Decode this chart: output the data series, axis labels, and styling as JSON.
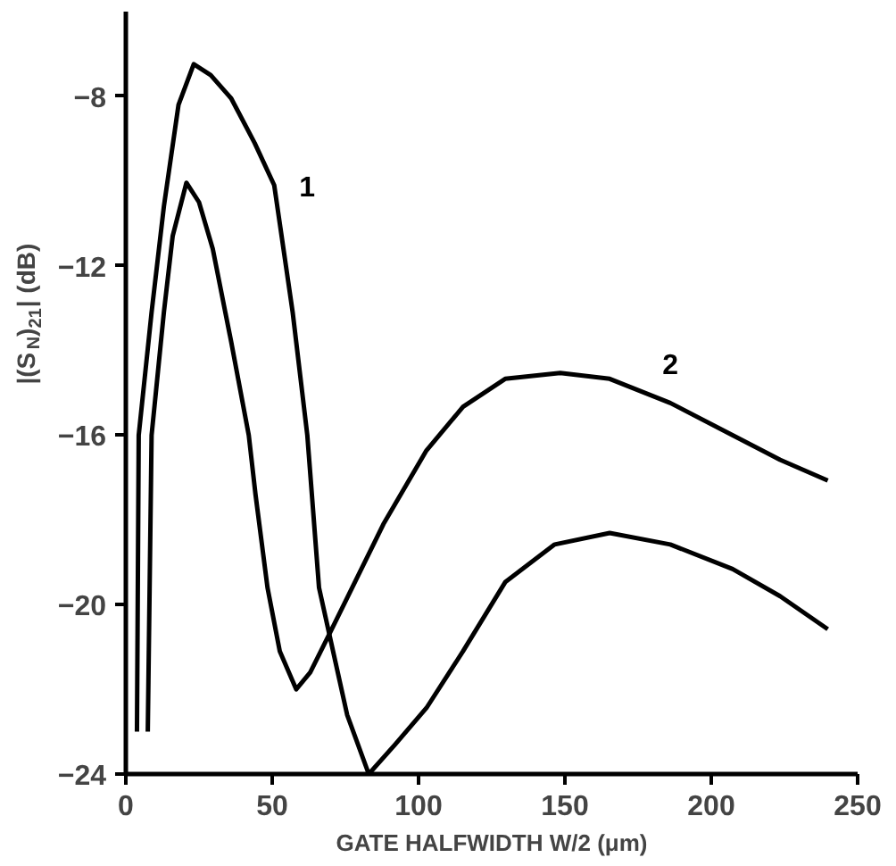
{
  "chart_data": {
    "type": "line",
    "xlabel": "GATE HALFWIDTH W/2 (μm)",
    "ylabel": "|(S$_{N}$)$_{21}$| (dB)",
    "xlim": [
      0,
      250
    ],
    "ylim": [
      -24,
      -6
    ],
    "xticks": [
      0,
      50,
      100,
      150,
      200,
      250
    ],
    "yticks": [
      -24,
      -20,
      -16,
      -12,
      -8
    ],
    "grid": false,
    "marker": "none",
    "line_style": "solid",
    "series": [
      {
        "name": "1",
        "color": "#000000",
        "x": [
          3.8,
          4.4,
          8.8,
          13,
          18,
          23.2,
          29,
          36,
          44,
          50.7,
          57,
          62,
          66,
          75.6,
          83,
          92,
          102.7,
          115.2,
          129.6,
          146.5,
          165.3,
          186,
          207.3,
          223.5,
          239.8
        ],
        "values": [
          -23.0,
          -16.0,
          -13.1,
          -10.6,
          -8.2,
          -7.24,
          -7.5,
          -8.05,
          -9.1,
          -10.1,
          -13.1,
          -16.0,
          -19.6,
          -22.6,
          -24.0,
          -23.3,
          -22.44,
          -21.1,
          -19.47,
          -18.58,
          -18.31,
          -18.58,
          -19.16,
          -19.8,
          -20.58
        ]
      },
      {
        "name": "2",
        "color": "#000000",
        "x": [
          7.5,
          8.8,
          13,
          16,
          20.7,
          25,
          29.7,
          36,
          42,
          44.3,
          48.4,
          52.6,
          58.2,
          63,
          69.5,
          88,
          102.7,
          115.2,
          129.6,
          148.4,
          165.3,
          186,
          207.3,
          223.5,
          239.8
        ],
        "values": [
          -23.0,
          -16.0,
          -13.1,
          -11.3,
          -10.04,
          -10.5,
          -11.6,
          -13.8,
          -16.0,
          -17.4,
          -19.6,
          -21.1,
          -22.0,
          -21.6,
          -20.7,
          -18.1,
          -16.36,
          -15.33,
          -14.67,
          -14.53,
          -14.67,
          -15.24,
          -16.0,
          -16.58,
          -17.07
        ]
      }
    ]
  }
}
